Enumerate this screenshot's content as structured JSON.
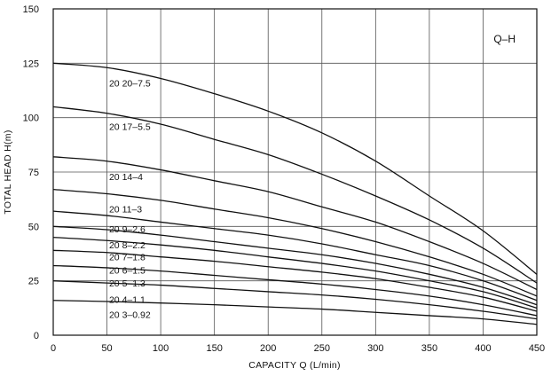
{
  "chart_data": {
    "type": "line",
    "chart_label": "Q–H",
    "xlabel": "CAPACITY  Q (L/min)",
    "ylabel": "TOTAL HEAD  H(m)",
    "xlim": [
      0,
      450
    ],
    "ylim": [
      0,
      150
    ],
    "xticks": [
      0,
      50,
      100,
      150,
      200,
      250,
      300,
      350,
      400,
      450
    ],
    "yticks": [
      0,
      25,
      50,
      75,
      100,
      125,
      150
    ],
    "grid": true,
    "x": [
      0,
      50,
      100,
      150,
      200,
      250,
      300,
      350,
      400,
      450
    ],
    "series": [
      {
        "name": "20 20–7.5",
        "values": [
          125,
          123,
          118,
          111,
          103,
          93,
          80,
          64,
          48,
          28
        ]
      },
      {
        "name": "20 17–5.5",
        "values": [
          105,
          102,
          97,
          90,
          83,
          74,
          64,
          53,
          40,
          24
        ]
      },
      {
        "name": "20 14–4",
        "values": [
          82,
          80,
          76,
          71,
          66,
          59,
          52,
          43,
          33,
          21
        ]
      },
      {
        "name": "20 11–3",
        "values": [
          67,
          65,
          62,
          58,
          54,
          49,
          43,
          36,
          28,
          18
        ]
      },
      {
        "name": "20 9–2.6",
        "values": [
          57,
          55,
          52,
          49,
          46,
          42,
          37,
          32,
          25,
          16
        ]
      },
      {
        "name": "20 8–2.2",
        "values": [
          50,
          48.5,
          46,
          43,
          40,
          37,
          33,
          28,
          22,
          14
        ]
      },
      {
        "name": "20 7–1.8",
        "values": [
          45,
          43.5,
          41.5,
          39,
          36,
          33,
          29.5,
          25,
          20,
          12.5
        ]
      },
      {
        "name": "20 6–1.5",
        "values": [
          39,
          38,
          36,
          34,
          31.5,
          29,
          26,
          22,
          17.5,
          11
        ]
      },
      {
        "name": "20 5–1.3",
        "values": [
          32,
          31,
          29.5,
          27.5,
          25.5,
          23.5,
          21,
          18,
          14,
          9
        ]
      },
      {
        "name": "20 4–1.1",
        "values": [
          25,
          24,
          23,
          21.5,
          20,
          18.5,
          16.5,
          14,
          11,
          7.5
        ]
      },
      {
        "name": "20 3–0.92",
        "values": [
          16,
          15.5,
          14.8,
          14,
          13,
          12,
          10.5,
          9,
          7.5,
          5
        ]
      }
    ],
    "label_positions_data": [
      {
        "x": 52,
        "y": 116
      },
      {
        "x": 52,
        "y": 96
      },
      {
        "x": 52,
        "y": 73
      },
      {
        "x": 52,
        "y": 58
      },
      {
        "x": 52,
        "y": 49
      },
      {
        "x": 52,
        "y": 41.5
      },
      {
        "x": 52,
        "y": 36
      },
      {
        "x": 52,
        "y": 30
      },
      {
        "x": 52,
        "y": 24
      },
      {
        "x": 52,
        "y": 16.5
      },
      {
        "x": 52,
        "y": 9.5
      }
    ]
  }
}
